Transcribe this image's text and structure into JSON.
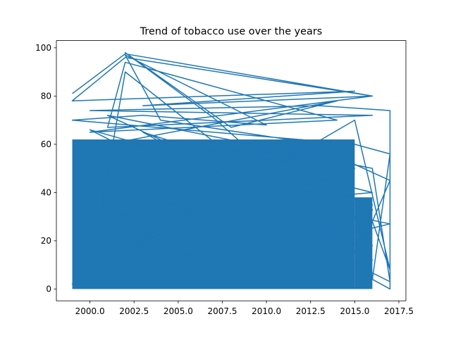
{
  "chart_data": {
    "type": "line",
    "title": "Trend of tobacco use over the years",
    "xlabel": "",
    "ylabel": "",
    "xlim": [
      1998.1,
      2017.9
    ],
    "ylim": [
      -4.9,
      103.0
    ],
    "x_ticks": [
      2000.0,
      2002.5,
      2005.0,
      2007.5,
      2010.0,
      2012.5,
      2015.0,
      2017.5
    ],
    "x_tick_labels": [
      "2000.0",
      "2002.5",
      "2005.0",
      "2007.5",
      "2010.0",
      "2012.5",
      "2015.0",
      "2017.5"
    ],
    "y_ticks": [
      0,
      20,
      40,
      60,
      80,
      100
    ],
    "y_tick_labels": [
      "0",
      "20",
      "40",
      "60",
      "80",
      "100"
    ],
    "grid": false,
    "legend": "none",
    "series_color": "#1f77b4",
    "series": [
      {
        "x": [
          1999,
          2002,
          2016,
          2002,
          1999,
          2015,
          2003,
          2016,
          2000,
          2014,
          2002,
          2001,
          2016,
          2000,
          2013,
          2017,
          2017,
          2016,
          2017,
          2015,
          1999,
          2003,
          2010,
          2002,
          2004,
          2013,
          2000,
          2015,
          2001,
          2016,
          2005,
          2013,
          2017,
          2015,
          2000,
          2002,
          2015,
          2016,
          2003,
          2016,
          2007,
          2002,
          2008,
          2014,
          2001,
          2014,
          2017,
          2016,
          2017,
          2015,
          1999,
          2012,
          2016,
          2015,
          2001,
          2016,
          2017,
          2000,
          2016,
          2015
        ],
        "y": [
          81,
          97.5,
          80,
          96,
          78,
          82,
          76,
          80,
          65,
          70,
          94,
          67,
          72,
          74,
          76,
          74,
          0,
          4,
          56,
          60,
          70,
          72,
          68,
          97,
          70,
          60,
          10,
          50,
          30,
          40,
          60,
          20,
          27,
          30,
          5,
          90,
          15,
          35,
          65,
          12,
          71,
          98,
          67,
          78,
          60,
          55,
          45,
          28,
          8,
          70,
          2,
          62,
          18,
          25,
          72,
          50,
          3,
          66,
          33,
          0
        ]
      }
    ]
  }
}
